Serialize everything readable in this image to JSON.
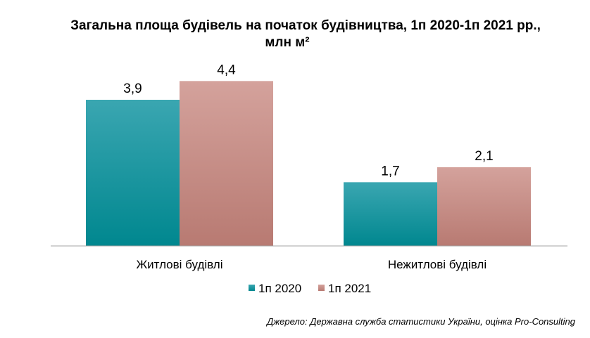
{
  "chart_data": {
    "type": "bar",
    "title_line1": "Загальна площа будівель на початок будівництва, 1п 2020-1п 2021 рр.,",
    "title_line2": "млн м²",
    "categories": [
      "Житлові будівлі",
      "Нежитлові будівлі"
    ],
    "series": [
      {
        "name": "1п 2020",
        "values": [
          3.9,
          1.7
        ],
        "labels": [
          "3,9",
          "1,7"
        ],
        "color": "#179aa4"
      },
      {
        "name": "1п 2021",
        "values": [
          4.4,
          2.1
        ],
        "labels": [
          "4,4",
          "2,1"
        ],
        "color": "#c78b84"
      }
    ],
    "ylim": [
      0,
      5.4
    ],
    "grid": false,
    "legend_position": "bottom",
    "source": "Джерело: Державна служба статистики України, оцінка Pro-Consulting"
  }
}
